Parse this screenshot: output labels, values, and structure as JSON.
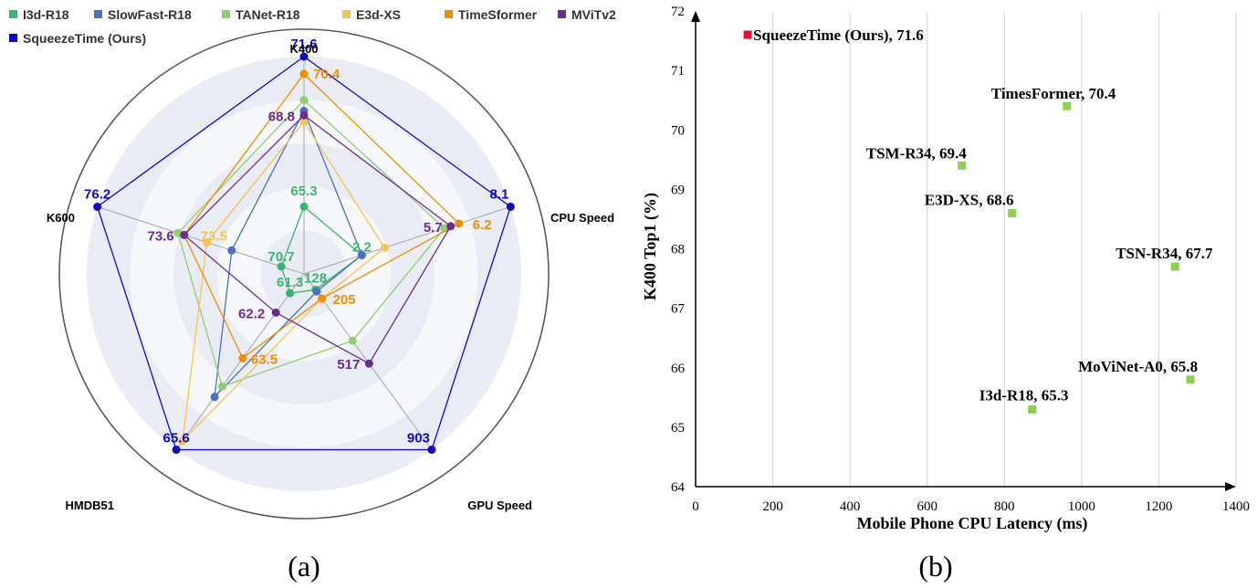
{
  "chart_data": [
    {
      "type": "radar",
      "caption": "(a)",
      "axes": [
        "K400",
        "CPU Speed",
        "GPU Speed",
        "HMDB51",
        "K600"
      ],
      "series": [
        {
          "name": "I3d-R18",
          "color": "#3cb371"
        },
        {
          "name": "SlowFast-R18",
          "color": "#4a6fc3"
        },
        {
          "name": "TANet-R18",
          "color": "#8fcf6f"
        },
        {
          "name": "E3d-XS",
          "color": "#f7c34f"
        },
        {
          "name": "TimeSformer",
          "color": "#f08c00"
        },
        {
          "name": "MViTv2",
          "color": "#6a2c91"
        },
        {
          "name": "SqueezeTime (Ours)",
          "color": "#0d0dbf"
        }
      ],
      "data_labels": [
        {
          "series": "SqueezeTime (Ours)",
          "axis": "K400",
          "value": "71.6"
        },
        {
          "series": "SqueezeTime (Ours)",
          "axis": "CPU Speed",
          "value": "8.1"
        },
        {
          "series": "SqueezeTime (Ours)",
          "axis": "GPU Speed",
          "value": "903"
        },
        {
          "series": "SqueezeTime (Ours)",
          "axis": "HMDB51",
          "value": "65.6"
        },
        {
          "series": "SqueezeTime (Ours)",
          "axis": "K600",
          "value": "76.2"
        },
        {
          "series": "TimeSformer",
          "axis": "K400",
          "value": "70.4"
        },
        {
          "series": "TimeSformer",
          "axis": "CPU Speed",
          "value": "6.2"
        },
        {
          "series": "TimeSformer",
          "axis": "GPU Speed",
          "value": "205"
        },
        {
          "series": "TimeSformer",
          "axis": "HMDB51",
          "value": "63.5"
        },
        {
          "series": "MViTv2",
          "axis": "K400",
          "value": "68.8"
        },
        {
          "series": "MViTv2",
          "axis": "CPU Speed",
          "value": "5.7"
        },
        {
          "series": "MViTv2",
          "axis": "GPU Speed",
          "value": "517"
        },
        {
          "series": "MViTv2",
          "axis": "HMDB51",
          "value": "62.2"
        },
        {
          "series": "MViTv2",
          "axis": "K600",
          "value": "73.6"
        },
        {
          "series": "E3d-XS",
          "axis": "K600",
          "value": "73.5"
        },
        {
          "series": "I3d-R18",
          "axis": "K400",
          "value": "65.3"
        },
        {
          "series": "I3d-R18",
          "axis": "CPU Speed",
          "value": "2.2"
        },
        {
          "series": "I3d-R18",
          "axis": "GPU Speed",
          "value": "128"
        },
        {
          "series": "I3d-R18",
          "axis": "HMDB51",
          "value": "61.3"
        },
        {
          "series": "I3d-R18",
          "axis": "K600",
          "value": "70.7"
        }
      ],
      "series_points": [
        {
          "series": "I3d-R18",
          "values": [
            0.31,
            0.28,
            0.09,
            0.11,
            0.11
          ]
        },
        {
          "series": "SlowFast-R18",
          "values": [
            0.75,
            0.28,
            0.1,
            0.7,
            0.35
          ]
        },
        {
          "series": "TANet-R18",
          "values": [
            0.8,
            0.68,
            0.38,
            0.64,
            0.61
          ]
        },
        {
          "series": "E3d-XS",
          "values": [
            0.7,
            0.39,
            0.14,
            0.95,
            0.47
          ]
        },
        {
          "series": "TimeSformer",
          "values": [
            0.92,
            0.75,
            0.14,
            0.48,
            0.58
          ]
        },
        {
          "series": "MViTv2",
          "values": [
            0.73,
            0.71,
            0.51,
            0.22,
            0.58
          ]
        },
        {
          "series": "SqueezeTime (Ours)",
          "values": [
            1.0,
            1.0,
            1.0,
            1.0,
            1.0
          ]
        }
      ]
    },
    {
      "type": "scatter",
      "caption": "(b)",
      "xlabel": "Mobile Phone CPU Latency  (ms)",
      "ylabel": "K400 Top1 (%)",
      "xlim": [
        0,
        1400
      ],
      "ylim": [
        64,
        72
      ],
      "x_ticks": [
        0,
        200,
        400,
        600,
        800,
        1000,
        1200,
        1400
      ],
      "y_ticks": [
        64,
        65,
        66,
        67,
        68,
        69,
        70,
        71,
        72
      ],
      "grid": "vertical",
      "points": [
        {
          "label": "SqueezeTime (Ours), 71.6",
          "x": 135,
          "y": 71.6,
          "color": "#e0102f"
        },
        {
          "label": "TimesFormer, 70.4",
          "x": 962,
          "y": 70.4,
          "color": "#8fcf4f"
        },
        {
          "label": "TSM-R34, 69.4",
          "x": 690,
          "y": 69.4,
          "color": "#8fcf4f"
        },
        {
          "label": "E3D-XS, 68.6",
          "x": 820,
          "y": 68.6,
          "color": "#8fcf4f"
        },
        {
          "label": "TSN-R34, 67.7",
          "x": 1242,
          "y": 67.7,
          "color": "#8fcf4f"
        },
        {
          "label": "MoViNet-A0, 65.8",
          "x": 1282,
          "y": 65.8,
          "color": "#8fcf4f"
        },
        {
          "label": "I3d-R18, 65.3",
          "x": 872,
          "y": 65.3,
          "color": "#8fcf4f"
        }
      ]
    }
  ]
}
